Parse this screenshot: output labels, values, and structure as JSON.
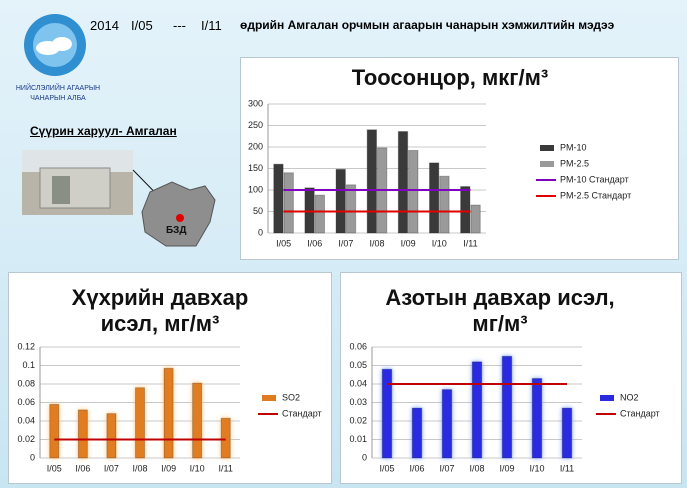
{
  "header": {
    "year": "2014",
    "start": "I/05",
    "dash": "---",
    "end": "I/11",
    "title": "өдрийн Амгалан орчмын агаарын чанарын хэмжилтийн мэдээ"
  },
  "logo": {
    "line1": "НИЙСЛЭЛИЙН АГААРЫН",
    "line2": "ЧАНАРЫН АЛБА"
  },
  "station": {
    "title": "Сүүрин харуул- Амгалан",
    "district": "БЗД"
  },
  "chart_data": [
    {
      "type": "bar",
      "title": "Тоосонцор, мкг/м³",
      "categories": [
        "I/05",
        "I/06",
        "I/07",
        "I/08",
        "I/09",
        "I/10",
        "I/11"
      ],
      "series": [
        {
          "name": "PM-10",
          "color": "#3a3a3a",
          "values": [
            160,
            105,
            148,
            240,
            236,
            163,
            108
          ]
        },
        {
          "name": "PM-2.5",
          "color": "#9a9a9a",
          "values": [
            140,
            88,
            112,
            198,
            192,
            132,
            65
          ]
        },
        {
          "name": "PM-10 Стандарт",
          "color": "#8000c0",
          "type": "line",
          "values": [
            100,
            100,
            100,
            100,
            100,
            100,
            100
          ]
        },
        {
          "name": "PM-2.5 Стандарт",
          "color": "#e00000",
          "type": "line",
          "values": [
            50,
            50,
            50,
            50,
            50,
            50,
            50
          ]
        }
      ],
      "ylim": [
        0,
        300
      ],
      "yticks": [
        0,
        50,
        100,
        150,
        200,
        250,
        300
      ],
      "grid": true
    },
    {
      "type": "bar",
      "title": "Хүхрийн давхар исэл, мг/м³",
      "categories": [
        "I/05",
        "I/06",
        "I/07",
        "I/08",
        "I/09",
        "I/10",
        "I/11"
      ],
      "series": [
        {
          "name": "SO2",
          "color": "#e07b20",
          "values": [
            0.058,
            0.052,
            0.048,
            0.076,
            0.097,
            0.081,
            0.043
          ]
        },
        {
          "name": "Стандарт",
          "color": "#c00000",
          "type": "line",
          "values": [
            0.02,
            0.02,
            0.02,
            0.02,
            0.02,
            0.02,
            0.02
          ]
        }
      ],
      "ylim": [
        0,
        0.12
      ],
      "yticks": [
        0,
        0.02,
        0.04,
        0.06,
        0.08,
        0.1,
        0.12
      ],
      "grid": true
    },
    {
      "type": "bar",
      "title": "Азотын давхар исэл, мг/м³",
      "categories": [
        "I/05",
        "I/06",
        "I/07",
        "I/08",
        "I/09",
        "I/10",
        "I/11"
      ],
      "series": [
        {
          "name": "NO2",
          "color": "#2a2ae0",
          "values": [
            0.048,
            0.027,
            0.037,
            0.052,
            0.055,
            0.043,
            0.027
          ]
        },
        {
          "name": "Стандарт",
          "color": "#c00000",
          "type": "line",
          "values": [
            0.04,
            0.04,
            0.04,
            0.04,
            0.04,
            0.04,
            0.04
          ]
        }
      ],
      "ylim": [
        0,
        0.06
      ],
      "yticks": [
        0,
        0.01,
        0.02,
        0.03,
        0.04,
        0.05,
        0.06
      ],
      "grid": true
    }
  ]
}
